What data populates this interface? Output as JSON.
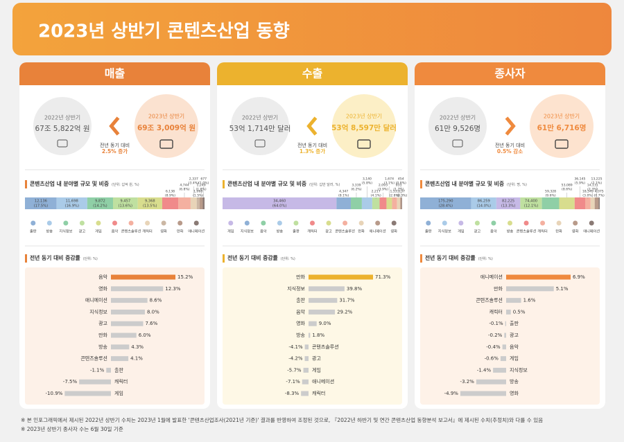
{
  "header": {
    "title": "2023년 상반기 콘텐츠산업 동향"
  },
  "panels": [
    {
      "title": "매출",
      "color": "#e8823a",
      "tint": "#fbe2d0",
      "soft": "#fdf1e8",
      "arrow": "left",
      "previous": {
        "label": "2022년 상반기",
        "value": "67조 5,822억 원"
      },
      "current": {
        "label": "2023년 상반기",
        "value": "69조 3,009억 원"
      },
      "change": {
        "label": "전년 동기 대비",
        "value": "2.5% 증가"
      },
      "share_chart": {
        "type": "stacked-bar",
        "title": "콘텐츠산업 내 분야별 규모 및 비중",
        "unit": "(단위: 십억 원, %)",
        "categories": [
          "출판",
          "방송",
          "지식정보",
          "광고",
          "게임",
          "음악",
          "콘텐츠솔루션",
          "캐릭터",
          "영화",
          "만화",
          "애니메이션"
        ],
        "values": [
          12136,
          11698,
          9872,
          9457,
          9368,
          6138,
          4744,
          2337,
          1068,
          1249,
          677
        ],
        "value_labels": [
          "12,136",
          "11,698",
          "9,872",
          "9,457",
          "9,368",
          "6,138",
          "4,744",
          "2,337",
          "1,068",
          "1,249",
          "677"
        ],
        "share_labels": [
          "(17.5%)",
          "(16.9%)",
          "(14.2%)",
          "(13.6%)",
          "(13.5%)",
          "(8.9%)",
          "(6.8%)",
          "(3.4%)",
          "(1.5%)",
          "(1.8%)",
          "(1.0%)"
        ],
        "colors": [
          "#8fb0d6",
          "#aacbe8",
          "#8fcfa6",
          "#bfe0a0",
          "#d8dd8e",
          "#f08a8a",
          "#f4b0a0",
          "#e8d4b8",
          "#cbb7a4",
          "#b89a8a",
          "#8a7a75"
        ]
      },
      "change_chart": {
        "type": "bar",
        "title": "전년 동기 대비 증감률",
        "unit": "(단위: %)",
        "categories": [
          "음악",
          "영화",
          "애니메이션",
          "지식정보",
          "광고",
          "만화",
          "방송",
          "콘텐츠솔루션",
          "출판",
          "캐릭터",
          "게임"
        ],
        "values": [
          15.2,
          12.3,
          8.6,
          8.0,
          7.6,
          6.0,
          4.3,
          4.1,
          -1.1,
          -7.5,
          -10.9
        ],
        "value_labels": [
          "15.2%",
          "12.3%",
          "8.6%",
          "8.0%",
          "7.6%",
          "6.0%",
          "4.3%",
          "4.1%",
          "-1.1%",
          "-7.5%",
          "-10.9%"
        ],
        "color": "#cccccc",
        "highlight_color": "#e8823a"
      }
    },
    {
      "title": "수출",
      "color": "#ecb22e",
      "tint": "#fcefc6",
      "soft": "#fef8e6",
      "arrow": "left",
      "previous": {
        "label": "2022년 상반기",
        "value": "53억 1,714만 달러"
      },
      "current": {
        "label": "2023년 상반기",
        "value": "53억 8,597만 달러"
      },
      "change": {
        "label": "전년 동기 대비",
        "value": "1.3% 증가"
      },
      "share_chart": {
        "type": "stacked-bar",
        "title": "콘텐츠산업 내 분야별 규모 및 비중",
        "unit": "(단위: 십만 달러, %)",
        "categories": [
          "게임",
          "지식정보",
          "음악",
          "방송",
          "출판",
          "캐릭터",
          "광고",
          "콘텐츠솔루션",
          "만화",
          "애니메이션",
          "영화"
        ],
        "values": [
          34460,
          4347,
          3339,
          3140,
          2217,
          2093,
          1674,
          1533,
          933,
          454,
          137
        ],
        "value_labels": [
          "34,460",
          "4,347",
          "3,339",
          "3,140",
          "2,217",
          "2,093",
          "1,674",
          "1,533",
          "933",
          "454",
          "137"
        ],
        "share_labels": [
          "(64.0%)",
          "(8.1%)",
          "(6.2%)",
          "(5.8%)",
          "(4.1%)",
          "(3.9%)",
          "(3.1%)",
          "(2.8%)",
          "(1.7%)",
          "(0.8%)",
          "(0.3%)"
        ],
        "colors": [
          "#c6b9e6",
          "#8fb0d6",
          "#8fcfa6",
          "#aacbe8",
          "#bfe0a0",
          "#f08a8a",
          "#d8dd8e",
          "#f4b0a0",
          "#e8d4b8",
          "#b89a8a",
          "#8a7a75"
        ]
      },
      "change_chart": {
        "type": "bar",
        "title": "전년 동기 대비 증감률",
        "unit": "(단위: %)",
        "categories": [
          "만화",
          "지식정보",
          "출판",
          "음악",
          "영화",
          "방송",
          "콘텐츠솔루션",
          "광고",
          "게임",
          "애니메이션",
          "캐릭터"
        ],
        "values": [
          71.3,
          39.8,
          31.7,
          29.2,
          9.0,
          1.8,
          -4.1,
          -4.2,
          -5.7,
          -7.1,
          -8.3
        ],
        "value_labels": [
          "71.3%",
          "39.8%",
          "31.7%",
          "29.2%",
          "9.0%",
          "1.8%",
          "-4.1%",
          "-4.2%",
          "-5.7%",
          "-7.1%",
          "-8.3%"
        ],
        "color": "#cccccc",
        "highlight_color": "#ecb22e"
      }
    },
    {
      "title": "종사자",
      "color": "#ef8a3e",
      "tint": "#fde3cf",
      "soft": "#fef2e8",
      "arrow": "right",
      "previous": {
        "label": "2022년 상반기",
        "value": "61만 9,526명"
      },
      "current": {
        "label": "2023년 상반기",
        "value": "61만 6,716명"
      },
      "change": {
        "label": "전년 동기 대비",
        "value": "0.5% 감소"
      },
      "share_chart": {
        "type": "stacked-bar",
        "title": "콘텐츠산업 내 분야별 규모 및 비중",
        "unit": "(단위: 명, %)",
        "categories": [
          "출판",
          "지식정보",
          "게임",
          "광고",
          "음악",
          "방송",
          "콘텐츠솔루션",
          "캐릭터",
          "만화",
          "영화",
          "애니메이션"
        ],
        "values": [
          175290,
          86259,
          82225,
          74400,
          59328,
          53089,
          36145,
          18549,
          14131,
          13225,
          4075
        ],
        "value_labels": [
          "175,290",
          "86,259",
          "82,225",
          "74,400",
          "59,328",
          "53,089",
          "36,145",
          "18,549",
          "14,131",
          "13,225",
          "4,075"
        ],
        "share_labels": [
          "(28.4%)",
          "(14.0%)",
          "(13.3%)",
          "(12.1%)",
          "(9.6%)",
          "(8.6%)",
          "(5.9%)",
          "(3.0%)",
          "(2.3%)",
          "(2.1%)",
          "(0.7%)"
        ],
        "colors": [
          "#8fb0d6",
          "#aacbe8",
          "#c6b9e6",
          "#bfe0a0",
          "#8fcfa6",
          "#d8dd8e",
          "#f08a8a",
          "#f4b0a0",
          "#e8d4b8",
          "#b89a8a",
          "#8a7a75"
        ]
      },
      "change_chart": {
        "type": "bar",
        "title": "전년 동기 대비 증감률",
        "unit": "(단위: %)",
        "categories": [
          "애니메이션",
          "만화",
          "콘텐츠솔루션",
          "캐릭터",
          "출판",
          "광고",
          "음악",
          "게임",
          "지식정보",
          "방송",
          "영화"
        ],
        "values": [
          6.9,
          5.1,
          1.6,
          0.5,
          -0.1,
          -0.2,
          -0.4,
          -0.6,
          -1.4,
          -3.2,
          -4.9
        ],
        "value_labels": [
          "6.9%",
          "5.1%",
          "1.6%",
          "0.5%",
          "-0.1%",
          "-0.2%",
          "-0.4%",
          "-0.6%",
          "-1.4%",
          "-3.2%",
          "-4.9%"
        ],
        "color": "#cccccc",
        "highlight_color": "#ef8a3e"
      }
    }
  ],
  "footnotes": [
    "※ 본 인포그래픽에서 제시된 2022년 상반기 수치는 2023년 1월에 발표한 '콘텐츠산업조사(2021년 기준)' 결과를 반영하여 조정된 것으로, 『2022년 하반기 및 연간 콘텐츠산업 동향분석 보고서』에 제시된 수치(추정치)와 다를 수 있음",
    "※ 2023년 상반기 종사자 수는 6월 30일 기준"
  ]
}
